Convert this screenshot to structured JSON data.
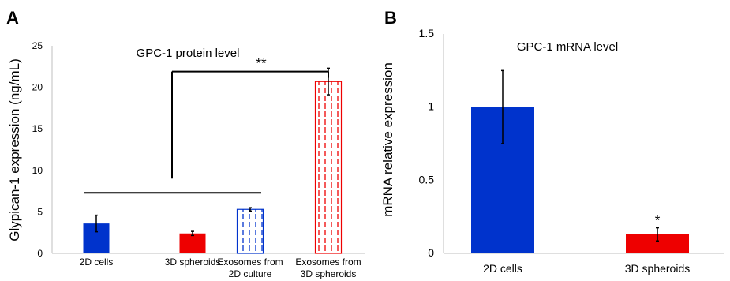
{
  "chart_data": [
    {
      "type": "bar",
      "panel_label": "A",
      "title": "GPC-1 protein level",
      "xlabel": "",
      "ylabel": "Glypican-1 expression (ng/mL)",
      "ylim": [
        0,
        25
      ],
      "yticks": [
        "0",
        "5",
        "10",
        "15",
        "20",
        "25"
      ],
      "categories": [
        [
          "2D cells"
        ],
        [
          "3D spheroids"
        ],
        [
          "Exosomes from",
          "2D culture"
        ],
        [
          "Exosomes from",
          "3D spheroids"
        ]
      ],
      "values": [
        3.6,
        2.4,
        5.3,
        20.7
      ],
      "errors": [
        1.0,
        0.25,
        0.2,
        1.6
      ],
      "colors": [
        "#0033cc",
        "#ee0000",
        "#0033cc",
        "#ee0000"
      ],
      "patterns": [
        "solid",
        "solid",
        "dashed",
        "dashed"
      ],
      "significance": {
        "label": "**",
        "bracket_over_categories": [
          0,
          2
        ],
        "bracket_y": 7.3,
        "connector_y": 21.9,
        "target_category": 3
      },
      "grid": false,
      "legend": "none"
    },
    {
      "type": "bar",
      "panel_label": "B",
      "title": "GPC-1 mRNA level",
      "xlabel": "",
      "ylabel": "mRNA relative expression",
      "ylim": [
        0,
        1.5
      ],
      "yticks": [
        "0",
        "0.5",
        "1",
        "1.5"
      ],
      "categories": [
        [
          "2D cells"
        ],
        [
          "3D spheroids"
        ]
      ],
      "values": [
        1.0,
        0.13
      ],
      "errors": [
        0.25,
        0.045
      ],
      "colors": [
        "#0033cc",
        "#ee0000"
      ],
      "patterns": [
        "solid",
        "solid"
      ],
      "annotations": [
        {
          "category": 1,
          "label": "*"
        }
      ],
      "grid": false,
      "legend": "none"
    }
  ]
}
